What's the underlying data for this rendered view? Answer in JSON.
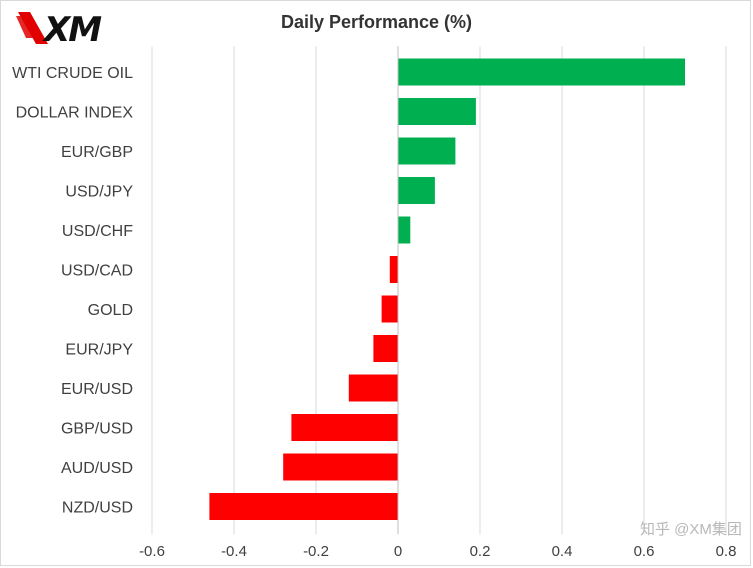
{
  "brand": {
    "logo_text": "XM"
  },
  "watermark": "知乎 @XM集团",
  "chart_data": {
    "type": "bar",
    "orientation": "horizontal",
    "title": "Daily Performance (%)",
    "xlabel": "",
    "ylabel": "",
    "categories": [
      "WTI CRUDE OIL",
      "DOLLAR INDEX",
      "EUR/GBP",
      "USD/JPY",
      "USD/CHF",
      "USD/CAD",
      "GOLD",
      "EUR/JPY",
      "EUR/USD",
      "GBP/USD",
      "AUD/USD",
      "NZD/USD"
    ],
    "values": [
      0.7,
      0.19,
      0.14,
      0.09,
      0.03,
      -0.02,
      -0.04,
      -0.06,
      -0.12,
      -0.26,
      -0.28,
      -0.46
    ],
    "xlim": [
      -0.6,
      0.8
    ],
    "xticks": [
      "-0.6",
      "-0.4",
      "-0.2",
      "0",
      "0.2",
      "0.4",
      "0.6",
      "0.8"
    ],
    "grid": "vertical",
    "positive_color": "#00b050",
    "negative_color": "#ff0000"
  }
}
